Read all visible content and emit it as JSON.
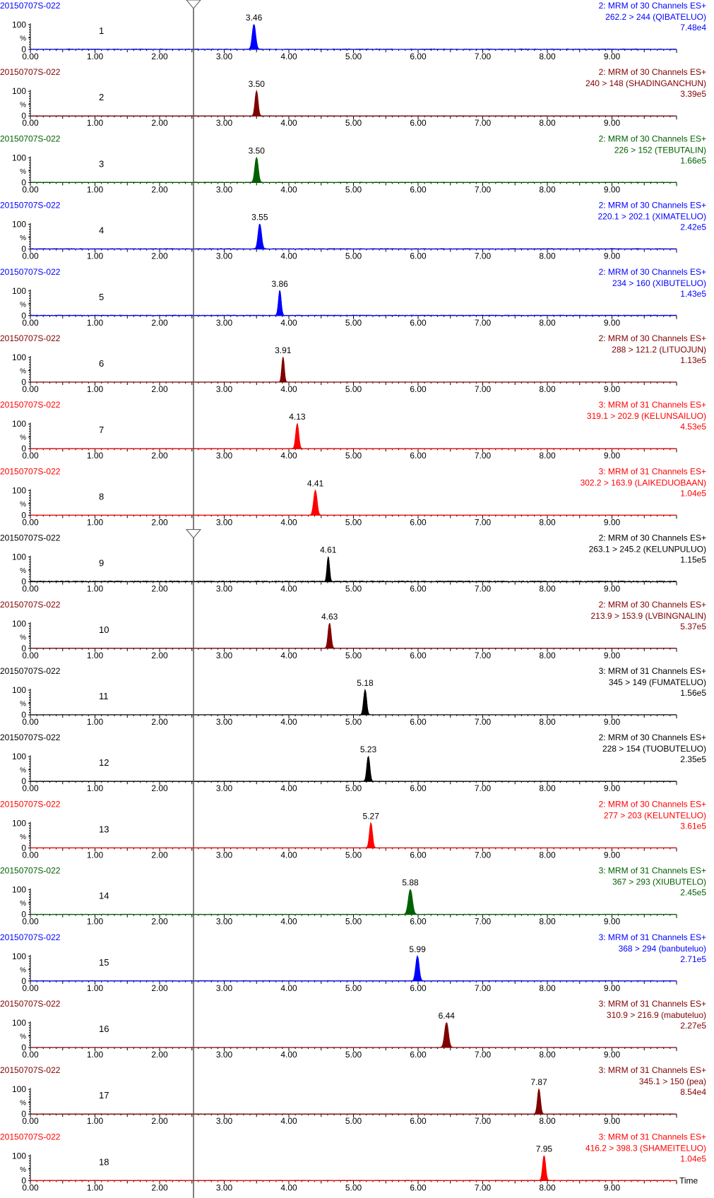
{
  "x_axis_label": "Time",
  "y_ticks": [
    "100",
    "%",
    "0"
  ],
  "chart_data": [
    {
      "type": "line",
      "panel": "1",
      "sample": "20150707S-022",
      "function": "2: MRM of 30 Channels ES+",
      "transition": "262.2 > 244 (QIBATELUO)",
      "intensity": "7.48e4",
      "peak_rt": 3.46,
      "peak_label": "3.46",
      "color": "#0000ff",
      "xlim": [
        0,
        10
      ],
      "x_ticks": [
        "0.00",
        "1.00",
        "2.00",
        "3.00",
        "4.00",
        "5.00",
        "6.00",
        "7.00",
        "8.00",
        "9.00"
      ],
      "ylim": [
        0,
        100
      ],
      "baseline": 3,
      "peak_width": 0.025
    },
    {
      "type": "line",
      "panel": "2",
      "sample": "20150707S-022",
      "function": "2: MRM of 30 Channels ES+",
      "transition": "240 > 148 (SHADINGANCHUN)",
      "intensity": "3.39e5",
      "peak_rt": 3.5,
      "peak_label": "3.50",
      "color": "#800000",
      "xlim": [
        0,
        10
      ],
      "x_ticks": [
        "0.00",
        "1.00",
        "2.00",
        "3.00",
        "4.00",
        "5.00",
        "6.00",
        "7.00",
        "8.00",
        "9.00"
      ],
      "ylim": [
        0,
        100
      ],
      "baseline": 1,
      "peak_width": 0.022
    },
    {
      "type": "line",
      "panel": "3",
      "sample": "20150707S-022",
      "function": "2: MRM of 30 Channels ES+",
      "transition": "226 > 152 (TEBUTALIN)",
      "intensity": "1.66e5",
      "peak_rt": 3.5,
      "peak_label": "3.50",
      "color": "#006000",
      "xlim": [
        0,
        10
      ],
      "x_ticks": [
        "0.00",
        "1.00",
        "2.00",
        "3.00",
        "4.00",
        "5.00",
        "6.00",
        "7.00",
        "8.00",
        "9.00"
      ],
      "ylim": [
        0,
        100
      ],
      "baseline": 2,
      "peak_width": 0.025
    },
    {
      "type": "line",
      "panel": "4",
      "sample": "20150707S-022",
      "function": "2: MRM of 30 Channels ES+",
      "transition": "220.1 > 202.1 (XIMATELUO)",
      "intensity": "2.42e5",
      "peak_rt": 3.55,
      "peak_label": "3.55",
      "color": "#0000ff",
      "xlim": [
        0,
        10
      ],
      "x_ticks": [
        "0.00",
        "1.00",
        "2.00",
        "3.00",
        "4.00",
        "5.00",
        "6.00",
        "7.00",
        "8.00",
        "9.00"
      ],
      "ylim": [
        0,
        100
      ],
      "baseline": 3,
      "peak_width": 0.025
    },
    {
      "type": "line",
      "panel": "5",
      "sample": "20150707S-022",
      "function": "2: MRM of 30 Channels ES+",
      "transition": "234 > 160 (XIBUTELUO)",
      "intensity": "1.43e5",
      "peak_rt": 3.86,
      "peak_label": "3.86",
      "color": "#0000ff",
      "xlim": [
        0,
        10
      ],
      "x_ticks": [
        "0.00",
        "1.00",
        "2.00",
        "3.00",
        "4.00",
        "5.00",
        "6.00",
        "7.00",
        "8.00",
        "9.00"
      ],
      "ylim": [
        0,
        100
      ],
      "baseline": 3,
      "peak_width": 0.02
    },
    {
      "type": "line",
      "panel": "6",
      "sample": "20150707S-022",
      "function": "2: MRM of 30 Channels ES+",
      "transition": "288 > 121.2 (LITUOJUN)",
      "intensity": "1.13e5",
      "peak_rt": 3.91,
      "peak_label": "3.91",
      "color": "#800000",
      "xlim": [
        0,
        10
      ],
      "x_ticks": [
        "0.00",
        "1.00",
        "2.00",
        "3.00",
        "4.00",
        "5.00",
        "6.00",
        "7.00",
        "8.00",
        "9.00"
      ],
      "ylim": [
        0,
        100
      ],
      "baseline": 1,
      "peak_width": 0.018
    },
    {
      "type": "line",
      "panel": "7",
      "sample": "20150707S-022",
      "function": "3: MRM of 31 Channels ES+",
      "transition": "319.1 > 202.9 (KELUNSAILUO)",
      "intensity": "4.53e5",
      "peak_rt": 4.13,
      "peak_label": "4.13",
      "color": "#ff0000",
      "xlim": [
        0,
        10
      ],
      "x_ticks": [
        "0.00",
        "1.00",
        "2.00",
        "3.00",
        "4.00",
        "5.00",
        "6.00",
        "7.00",
        "8.00",
        "9.00"
      ],
      "ylim": [
        0,
        100
      ],
      "baseline": 1,
      "peak_width": 0.022
    },
    {
      "type": "line",
      "panel": "8",
      "sample": "20150707S-022",
      "function": "3: MRM of 31 Channels ES+",
      "transition": "302.2 > 163.9 (LAIKEDUOBAAN)",
      "intensity": "1.04e5",
      "peak_rt": 4.41,
      "peak_label": "4.41",
      "color": "#ff0000",
      "xlim": [
        0,
        10
      ],
      "x_ticks": [
        "0.00",
        "1.00",
        "2.00",
        "3.00",
        "4.00",
        "5.00",
        "6.00",
        "7.00",
        "8.00",
        "9.00"
      ],
      "ylim": [
        0,
        100
      ],
      "baseline": 1,
      "peak_width": 0.025
    },
    {
      "type": "line",
      "panel": "9",
      "sample": "20150707S-022",
      "function": "2: MRM of 30 Channels ES+",
      "transition": "263.1 > 245.2 (KELUNPULUO)",
      "intensity": "1.15e5",
      "peak_rt": 4.61,
      "peak_label": "4.61",
      "color": "#000000",
      "xlim": [
        0,
        10
      ],
      "x_ticks": [
        "0.00",
        "1.00",
        "2.00",
        "3.00",
        "4.00",
        "5.00",
        "6.00",
        "7.00",
        "8.00",
        "9.00"
      ],
      "ylim": [
        0,
        100
      ],
      "baseline": 5,
      "peak_width": 0.018
    },
    {
      "type": "line",
      "panel": "10",
      "sample": "20150707S-022",
      "function": "2: MRM of 30 Channels ES+",
      "transition": "213.9 > 153.9 (LVBINGNALIN)",
      "intensity": "5.37e5",
      "peak_rt": 4.63,
      "peak_label": "4.63",
      "color": "#800000",
      "xlim": [
        0,
        10
      ],
      "x_ticks": [
        "0.00",
        "1.00",
        "2.00",
        "3.00",
        "4.00",
        "5.00",
        "6.00",
        "7.00",
        "8.00",
        "9.00"
      ],
      "ylim": [
        0,
        100
      ],
      "baseline": 1,
      "peak_width": 0.022
    },
    {
      "type": "line",
      "panel": "11",
      "sample": "20150707S-022",
      "function": "3: MRM of 31 Channels ES+",
      "transition": "345 > 149 (FUMATELUO)",
      "intensity": "1.56e5",
      "peak_rt": 5.18,
      "peak_label": "5.18",
      "color": "#000000",
      "xlim": [
        0,
        10
      ],
      "x_ticks": [
        "0.00",
        "1.00",
        "2.00",
        "3.00",
        "4.00",
        "5.00",
        "6.00",
        "7.00",
        "8.00",
        "9.00"
      ],
      "ylim": [
        0,
        100
      ],
      "baseline": 1,
      "peak_width": 0.022
    },
    {
      "type": "line",
      "panel": "12",
      "sample": "20150707S-022",
      "function": "2: MRM of 30 Channels ES+",
      "transition": "228 > 154 (TUOBUTELUO)",
      "intensity": "2.35e5",
      "peak_rt": 5.23,
      "peak_label": "5.23",
      "color": "#000000",
      "xlim": [
        0,
        10
      ],
      "x_ticks": [
        "0.00",
        "1.00",
        "2.00",
        "3.00",
        "4.00",
        "5.00",
        "6.00",
        "7.00",
        "8.00",
        "9.00"
      ],
      "ylim": [
        0,
        100
      ],
      "baseline": 1,
      "peak_width": 0.022
    },
    {
      "type": "line",
      "panel": "13",
      "sample": "20150707S-022",
      "function": "2: MRM of 30 Channels ES+",
      "transition": "277 > 203 (KELUNTELUO)",
      "intensity": "3.61e5",
      "peak_rt": 5.27,
      "peak_label": "5.27",
      "color": "#ff0000",
      "xlim": [
        0,
        10
      ],
      "x_ticks": [
        "0.00",
        "1.00",
        "2.00",
        "3.00",
        "4.00",
        "5.00",
        "6.00",
        "7.00",
        "8.00",
        "9.00"
      ],
      "ylim": [
        0,
        100
      ],
      "baseline": 1,
      "peak_width": 0.022
    },
    {
      "type": "line",
      "panel": "14",
      "sample": "20150707S-022",
      "function": "3: MRM of 31 Channels ES+",
      "transition": "367 > 293 (XIUBUTELO)",
      "intensity": "2.45e5",
      "peak_rt": 5.88,
      "peak_label": "5.88",
      "color": "#006000",
      "xlim": [
        0,
        10
      ],
      "x_ticks": [
        "0.00",
        "1.00",
        "2.00",
        "3.00",
        "4.00",
        "5.00",
        "6.00",
        "7.00",
        "8.00",
        "9.00"
      ],
      "ylim": [
        0,
        100
      ],
      "baseline": 1,
      "peak_width": 0.03
    },
    {
      "type": "line",
      "panel": "15",
      "sample": "20150707S-022",
      "function": "3: MRM of 31 Channels ES+",
      "transition": "368 > 294 (banbuteluo)",
      "intensity": "2.71e5",
      "peak_rt": 5.99,
      "peak_label": "5.99",
      "color": "#0000ff",
      "xlim": [
        0,
        10
      ],
      "x_ticks": [
        "0.00",
        "1.00",
        "2.00",
        "3.00",
        "4.00",
        "5.00",
        "6.00",
        "7.00",
        "8.00",
        "9.00"
      ],
      "ylim": [
        0,
        100
      ],
      "baseline": 2,
      "peak_width": 0.025
    },
    {
      "type": "line",
      "panel": "16",
      "sample": "20150707S-022",
      "function": "3: MRM of 31 Channels ES+",
      "transition": "310.9 > 216.9 (mabuteluo)",
      "intensity": "2.27e5",
      "peak_rt": 6.44,
      "peak_label": "6.44",
      "color": "#800000",
      "xlim": [
        0,
        10
      ],
      "x_ticks": [
        "0.00",
        "1.00",
        "2.00",
        "3.00",
        "4.00",
        "5.00",
        "6.00",
        "7.00",
        "8.00",
        "9.00"
      ],
      "ylim": [
        0,
        100
      ],
      "baseline": 1,
      "peak_width": 0.028
    },
    {
      "type": "line",
      "panel": "17",
      "sample": "20150707S-022",
      "function": "3: MRM of 31 Channels ES+",
      "transition": "345.1 > 150 (pea)",
      "intensity": "8.54e4",
      "peak_rt": 7.87,
      "peak_label": "7.87",
      "color": "#800000",
      "xlim": [
        0,
        10
      ],
      "x_ticks": [
        "0.00",
        "1.00",
        "2.00",
        "3.00",
        "4.00",
        "5.00",
        "6.00",
        "7.00",
        "8.00",
        "9.00"
      ],
      "ylim": [
        0,
        100
      ],
      "baseline": 1,
      "peak_width": 0.022
    },
    {
      "type": "line",
      "panel": "18",
      "sample": "20150707S-022",
      "function": "3: MRM of 31 Channels ES+",
      "transition": "416.2 > 398.3 (SHAMEITELUO)",
      "intensity": "1.04e5",
      "peak_rt": 7.95,
      "peak_label": "7.95",
      "color": "#ff0000",
      "xlim": [
        0,
        10
      ],
      "x_ticks": [
        "0.00",
        "1.00",
        "2.00",
        "3.00",
        "4.00",
        "5.00",
        "6.00",
        "7.00",
        "8.00",
        "9.00"
      ],
      "ylim": [
        0,
        100
      ],
      "baseline": 2,
      "peak_width": 0.022
    }
  ]
}
